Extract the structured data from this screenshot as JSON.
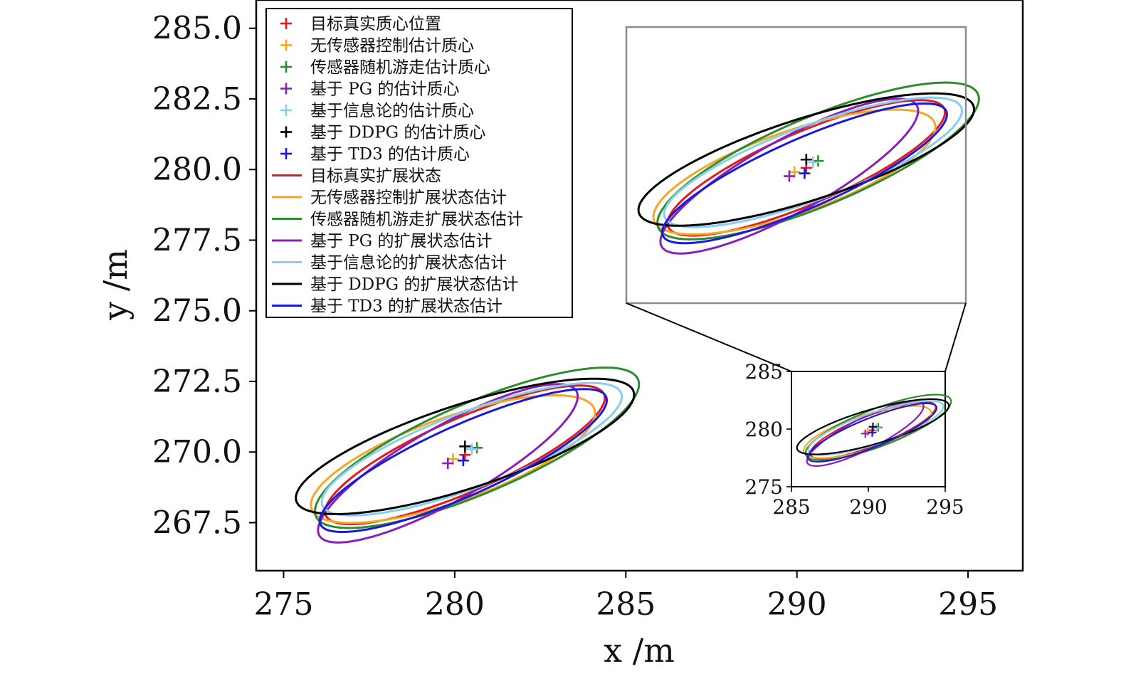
{
  "chart_data": {
    "type": "scatter",
    "xlabel": "x /m",
    "ylabel": "y /m",
    "xlim": [
      274.2,
      296.6
    ],
    "ylim": [
      265.8,
      286.0
    ],
    "x_ticks": [
      "275",
      "280",
      "285",
      "290",
      "295"
    ],
    "y_ticks": [
      "267.5",
      "270.0",
      "272.5",
      "275.0",
      "277.5",
      "280.0",
      "282.5",
      "285.0"
    ],
    "zoom_region": {
      "xlim": [
        285,
        295
      ],
      "ylim": [
        275,
        285
      ]
    },
    "inset": {
      "x_ticks": [
        "285",
        "290",
        "295"
      ],
      "y_ticks": [
        "275",
        "280",
        "285"
      ]
    },
    "legend": [
      {
        "label": "目标真实质心位置",
        "kind": "marker",
        "color": "#e41a1c"
      },
      {
        "label": "无传感器控制估计质心",
        "kind": "marker",
        "color": "#f5a623"
      },
      {
        "label": "传感器随机游走估计质心",
        "kind": "marker",
        "color": "#2e8b2e"
      },
      {
        "label": "基于 PG 的估计质心",
        "kind": "marker",
        "color": "#8a1fb5"
      },
      {
        "label": "基于信息论的估计质心",
        "kind": "marker",
        "color": "#87cef0"
      },
      {
        "label": "基于 DDPG 的估计质心",
        "kind": "marker",
        "color": "#000000"
      },
      {
        "label": "基于 TD3 的估计质心",
        "kind": "marker",
        "color": "#1a1adb"
      },
      {
        "label": "目标真实扩展状态",
        "kind": "line",
        "color": "#e41a1c"
      },
      {
        "label": "无传感器控制扩展状态估计",
        "kind": "line",
        "color": "#f5a623"
      },
      {
        "label": "传感器随机游走扩展状态估计",
        "kind": "line",
        "color": "#2e8b2e"
      },
      {
        "label": "基于 PG 的扩展状态估计",
        "kind": "line",
        "color": "#8a1fb5"
      },
      {
        "label": "基于信息论的扩展状态估计",
        "kind": "line",
        "color": "#87cef0"
      },
      {
        "label": "基于 DDPG 的扩展状态估计",
        "kind": "line",
        "color": "#000000"
      },
      {
        "label": "基于 TD3 的扩展状态估计",
        "kind": "line",
        "color": "#1a1adb"
      }
    ],
    "series": [
      {
        "name": "目标真实",
        "color": "#e41a1c",
        "centroid": [
          280.3,
          269.9
        ],
        "ellipse": {
          "a": 4.6,
          "b": 1.25,
          "angle_deg": 28.5
        }
      },
      {
        "name": "无传感器控制",
        "color": "#f5a623",
        "centroid": [
          279.95,
          269.75
        ],
        "ellipse": {
          "a": 4.5,
          "b": 1.45,
          "angle_deg": 24
        }
      },
      {
        "name": "传感器随机游走",
        "color": "#2e8b2e",
        "centroid": [
          280.65,
          270.15
        ],
        "ellipse": {
          "a": 5.3,
          "b": 1.55,
          "angle_deg": 28
        }
      },
      {
        "name": "PG",
        "color": "#8a1fb5",
        "centroid": [
          279.8,
          269.6
        ],
        "ellipse": {
          "a": 4.55,
          "b": 1.25,
          "angle_deg": 35
        }
      },
      {
        "name": "信息论",
        "color": "#87cef0",
        "centroid": [
          280.5,
          270.1
        ],
        "ellipse": {
          "a": 4.8,
          "b": 1.3,
          "angle_deg": 25
        }
      },
      {
        "name": "DDPG",
        "color": "#000000",
        "centroid": [
          280.3,
          270.2
        ],
        "ellipse": {
          "a": 5.3,
          "b": 1.45,
          "angle_deg": 22
        }
      },
      {
        "name": "TD3",
        "color": "#1a1adb",
        "centroid": [
          280.25,
          269.7
        ],
        "ellipse": {
          "a": 4.75,
          "b": 1.2,
          "angle_deg": 29
        }
      }
    ]
  }
}
